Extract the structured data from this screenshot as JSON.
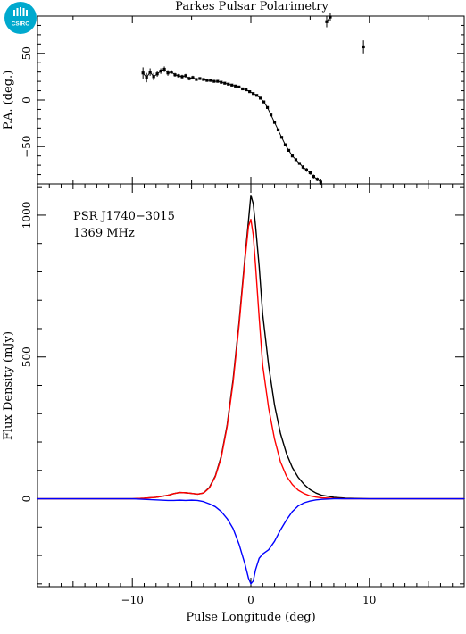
{
  "chart_data": [
    {
      "type": "scatter",
      "title": "Parkes Pulsar Polarimetry",
      "xlabel": "",
      "ylabel": "P.A. (deg.)",
      "xlim": [
        -18,
        18
      ],
      "ylim": [
        -90,
        90
      ],
      "yticks": [
        -50,
        0,
        50
      ],
      "grid": false,
      "series": [
        {
          "x": [
            -9.1,
            -8.8,
            -8.5,
            -8.2,
            -7.9,
            -7.6,
            -7.3,
            -7.0,
            -6.7,
            -6.4,
            -6.1,
            -5.8,
            -5.5,
            -5.2,
            -4.9,
            -4.6,
            -4.3,
            -4.0,
            -3.7,
            -3.4,
            -3.1,
            -2.8,
            -2.5,
            -2.2,
            -1.9,
            -1.6,
            -1.3,
            -1.0,
            -0.7,
            -0.4,
            -0.1,
            0.2,
            0.5,
            0.8,
            1.1,
            1.4,
            1.7,
            2.0,
            2.3,
            2.6,
            2.9,
            3.2,
            3.5,
            3.8,
            4.1,
            4.4,
            4.7,
            5.0,
            5.3,
            5.6,
            5.9,
            6.4,
            6.7,
            9.5
          ],
          "y": [
            29,
            24,
            30,
            25,
            28,
            31,
            33,
            29,
            30,
            27,
            26,
            25,
            26,
            23,
            24,
            22,
            23,
            22,
            21,
            21,
            20,
            20,
            19,
            18,
            17,
            16,
            15,
            14,
            12,
            11,
            9,
            7,
            5,
            2,
            -2,
            -8,
            -16,
            -24,
            -32,
            -40,
            -48,
            -54,
            -60,
            -64,
            -68,
            -72,
            -75,
            -78,
            -82,
            -85,
            -88,
            84,
            89,
            57
          ],
          "yerr": [
            6,
            5,
            4,
            4,
            3,
            3,
            3,
            3,
            2,
            2,
            2,
            2,
            2,
            2,
            2,
            1,
            1,
            1,
            1,
            1,
            1,
            1,
            1,
            1,
            1,
            1,
            1,
            1,
            1,
            1,
            1,
            1,
            1,
            1,
            1,
            1,
            1,
            1,
            1,
            1,
            1,
            1,
            1,
            1,
            1,
            2,
            2,
            2,
            2,
            2,
            3,
            6,
            4,
            7
          ]
        }
      ]
    },
    {
      "type": "line",
      "title": "",
      "xlabel": "Pulse Longitude (deg)",
      "ylabel": "Flux Density (mJy)",
      "xlim": [
        -18,
        18
      ],
      "ylim": [
        -310,
        1110
      ],
      "xticks": [
        -10,
        0,
        10
      ],
      "yticks": [
        0,
        500,
        1000
      ],
      "grid": false,
      "annotations": [
        "PSR J1740−3015",
        "1369 MHz"
      ],
      "x": [
        -18,
        -16,
        -14,
        -12,
        -10,
        -9,
        -8,
        -7,
        -6.5,
        -6,
        -5.5,
        -5,
        -4.5,
        -4,
        -3.5,
        -3,
        -2.5,
        -2,
        -1.5,
        -1,
        -0.5,
        -0.2,
        0,
        0.2,
        0.4,
        0.7,
        1,
        1.5,
        2,
        2.5,
        3,
        3.5,
        4,
        4.5,
        5,
        5.5,
        6,
        7,
        8,
        10,
        12,
        15,
        18
      ],
      "series": [
        {
          "color": "#000000",
          "values": [
            0,
            0,
            0,
            0,
            0,
            2,
            5,
            12,
            18,
            22,
            21,
            19,
            16,
            20,
            40,
            80,
            150,
            260,
            420,
            620,
            850,
            980,
            1070,
            1040,
            960,
            820,
            650,
            470,
            330,
            230,
            160,
            110,
            75,
            50,
            32,
            20,
            12,
            5,
            2,
            0,
            0,
            0,
            0
          ]
        },
        {
          "color": "#ff0000",
          "values": [
            0,
            0,
            0,
            0,
            0,
            2,
            5,
            12,
            18,
            22,
            21,
            19,
            16,
            20,
            38,
            78,
            145,
            255,
            410,
            610,
            840,
            960,
            985,
            930,
            820,
            640,
            470,
            320,
            210,
            130,
            80,
            50,
            30,
            18,
            10,
            6,
            3,
            1,
            0,
            0,
            0,
            0,
            0
          ]
        },
        {
          "color": "#0000ff",
          "values": [
            0,
            0,
            0,
            0,
            0,
            -2,
            -4,
            -6,
            -6,
            -5,
            -6,
            -5,
            -6,
            -10,
            -18,
            -28,
            -45,
            -70,
            -105,
            -160,
            -230,
            -280,
            -300,
            -290,
            -250,
            -210,
            -195,
            -180,
            -150,
            -110,
            -75,
            -45,
            -25,
            -14,
            -8,
            -4,
            -2,
            0,
            0,
            0,
            0,
            0,
            0
          ]
        }
      ]
    }
  ],
  "logo": {
    "text": "CSIRO",
    "color": "#00a9ce"
  },
  "labels": {
    "title": "Parkes Pulsar Polarimetry",
    "pa_ylabel": "P.A. (deg.)",
    "flux_ylabel": "Flux Density (mJy)",
    "xlabel": "Pulse Longitude (deg)",
    "psr_name": "PSR J1740−3015",
    "frequency": "1369 MHz"
  }
}
